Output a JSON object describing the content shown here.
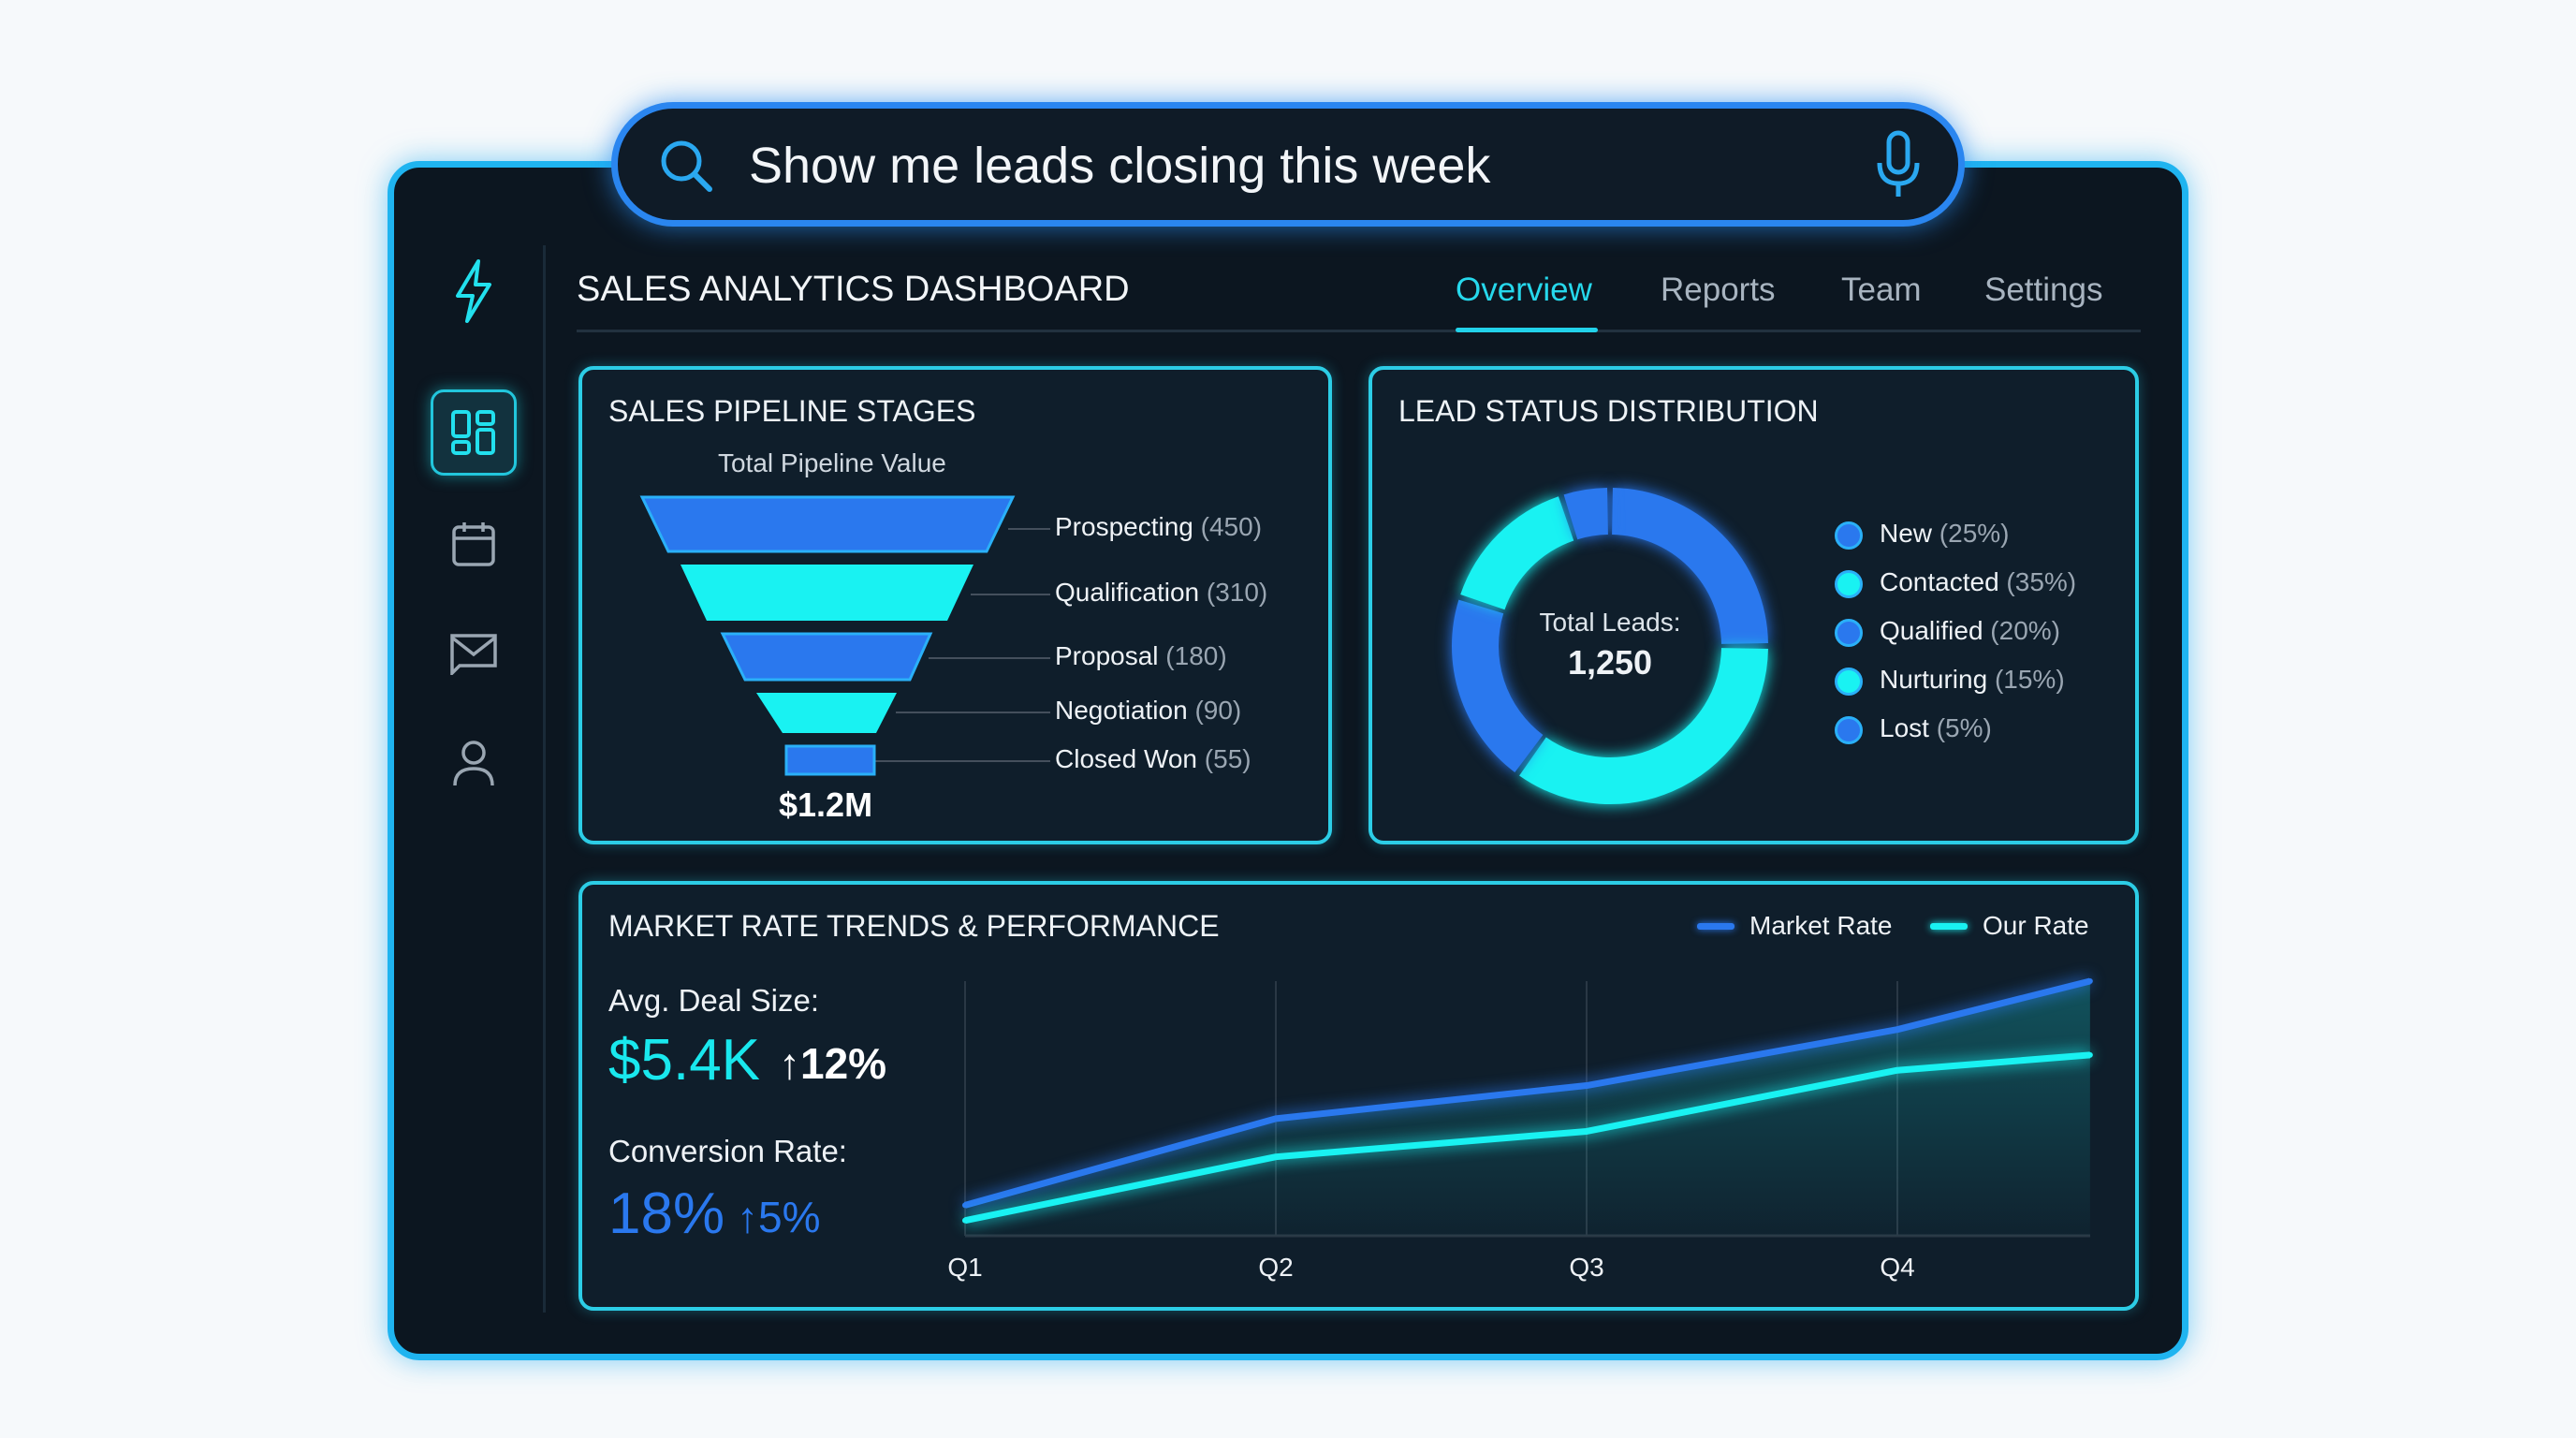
{
  "search": {
    "query": "Show me leads closing this week",
    "icon": "search-icon",
    "mic_icon": "microphone-icon"
  },
  "sidebar": {
    "items": [
      {
        "icon": "lightning-icon"
      },
      {
        "icon": "dashboard-icon",
        "active": true
      },
      {
        "icon": "calendar-icon"
      },
      {
        "icon": "mail-icon"
      },
      {
        "icon": "user-icon"
      }
    ]
  },
  "header": {
    "title": "SALES ANALYTICS DASHBOARD",
    "tabs": [
      {
        "label": "Overview",
        "active": true
      },
      {
        "label": "Reports"
      },
      {
        "label": "Team"
      },
      {
        "label": "Settings"
      }
    ]
  },
  "colors": {
    "accent_cyan": "#19f2f2",
    "accent_blue": "#2a78ee",
    "border": "#2ccde6",
    "panel_bg": "#0f1e2b"
  },
  "pipeline": {
    "title": "SALES PIPELINE STAGES",
    "subtitle": "Total Pipeline Value",
    "total": "$1.2M",
    "stages": [
      {
        "name": "Prospecting",
        "count": "(450)"
      },
      {
        "name": "Qualification",
        "count": "(310)"
      },
      {
        "name": "Proposal",
        "count": "(180)"
      },
      {
        "name": "Negotiation",
        "count": "(90)"
      },
      {
        "name": "Closed Won",
        "count": "(55)"
      }
    ]
  },
  "leads": {
    "title": "LEAD STATUS DISTRIBUTION",
    "center_label": "Total Leads:",
    "center_value": "1,250",
    "chart_data": {
      "type": "pie",
      "values": [
        25,
        35,
        20,
        15,
        5
      ],
      "categories": [
        "New",
        "Contacted",
        "Qualified",
        "Nurturing",
        "Lost"
      ]
    },
    "legend": [
      {
        "name": "New",
        "pct": "(25%)",
        "color": "#2a78ee"
      },
      {
        "name": "Contacted",
        "pct": "(35%)",
        "color": "#19f2f2"
      },
      {
        "name": "Qualified",
        "pct": "(20%)",
        "color": "#2a78ee"
      },
      {
        "name": "Nurturing",
        "pct": "(15%)",
        "color": "#19f2f2"
      },
      {
        "name": "Lost",
        "pct": "(5%)",
        "color": "#2a78ee"
      }
    ]
  },
  "market": {
    "title": "MARKET RATE TRENDS & PERFORMANCE",
    "avg_label": "Avg. Deal Size:",
    "avg_value": "$5.4K",
    "avg_change": "↑12%",
    "conv_label": "Conversion Rate:",
    "conv_value": "18%",
    "conv_change": "↑5%",
    "chart_data": {
      "type": "line",
      "x": [
        1,
        2,
        3,
        4,
        4.62
      ],
      "xticks": [
        "Q1",
        "Q2",
        "Q3",
        "Q4"
      ],
      "ylim": [
        0,
        100
      ],
      "grid": "vertical",
      "legend": "top-right",
      "series": [
        {
          "name": "Market Rate",
          "color": "#2a78ee",
          "values": [
            12,
            46,
            59,
            81,
            100
          ]
        },
        {
          "name": "Our Rate",
          "color": "#19f2f2",
          "values": [
            6,
            31,
            41,
            65,
            71
          ]
        }
      ]
    }
  }
}
